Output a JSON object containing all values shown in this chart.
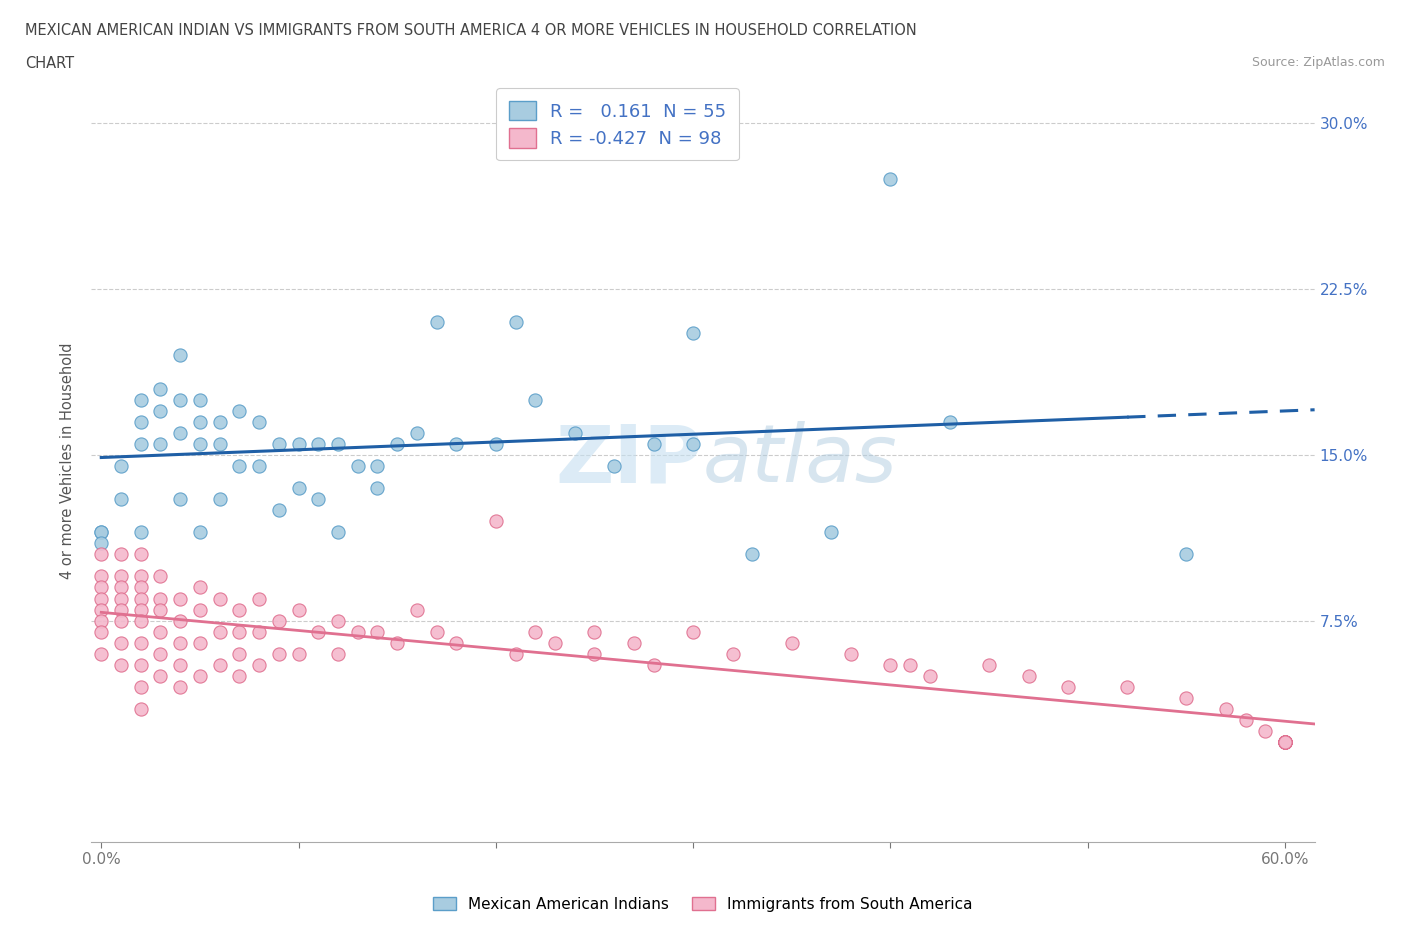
{
  "title_line1": "MEXICAN AMERICAN INDIAN VS IMMIGRANTS FROM SOUTH AMERICA 4 OR MORE VEHICLES IN HOUSEHOLD CORRELATION",
  "title_line2": "CHART",
  "source": "Source: ZipAtlas.com",
  "r_blue": 0.161,
  "n_blue": 55,
  "r_pink": -0.427,
  "n_pink": 98,
  "ylabel": "4 or more Vehicles in Household",
  "xlim": [
    -0.005,
    0.615
  ],
  "ylim": [
    -0.025,
    0.32
  ],
  "x_ticks": [
    0.0,
    0.1,
    0.2,
    0.3,
    0.4,
    0.5,
    0.6
  ],
  "y_ticks": [
    0.0,
    0.075,
    0.15,
    0.225,
    0.3
  ],
  "blue_scatter_color": "#a8cce0",
  "blue_edge_color": "#5b9ec9",
  "pink_scatter_color": "#f4b8cc",
  "pink_edge_color": "#e07090",
  "blue_line_color": "#1f5fa6",
  "pink_line_color": "#e07090",
  "grid_color": "#cccccc",
  "right_tick_color": "#4472c4",
  "background_color": "#ffffff",
  "watermark_color": "#daeaf4",
  "legend_label_blue": "Mexican American Indians",
  "legend_label_pink": "Immigrants from South America",
  "blue_x": [
    0.0,
    0.0,
    0.0,
    0.01,
    0.01,
    0.02,
    0.02,
    0.02,
    0.02,
    0.03,
    0.03,
    0.03,
    0.04,
    0.04,
    0.04,
    0.04,
    0.05,
    0.05,
    0.05,
    0.05,
    0.06,
    0.06,
    0.06,
    0.07,
    0.07,
    0.08,
    0.08,
    0.09,
    0.09,
    0.1,
    0.1,
    0.11,
    0.11,
    0.12,
    0.12,
    0.13,
    0.14,
    0.14,
    0.15,
    0.16,
    0.17,
    0.18,
    0.2,
    0.21,
    0.22,
    0.24,
    0.26,
    0.28,
    0.3,
    0.33,
    0.37,
    0.4,
    0.43,
    0.55,
    0.3
  ],
  "blue_y": [
    0.115,
    0.115,
    0.11,
    0.145,
    0.13,
    0.175,
    0.165,
    0.155,
    0.115,
    0.18,
    0.17,
    0.155,
    0.195,
    0.175,
    0.16,
    0.13,
    0.175,
    0.165,
    0.155,
    0.115,
    0.165,
    0.155,
    0.13,
    0.17,
    0.145,
    0.165,
    0.145,
    0.155,
    0.125,
    0.155,
    0.135,
    0.155,
    0.13,
    0.155,
    0.115,
    0.145,
    0.145,
    0.135,
    0.155,
    0.16,
    0.21,
    0.155,
    0.155,
    0.21,
    0.175,
    0.16,
    0.145,
    0.155,
    0.155,
    0.105,
    0.115,
    0.275,
    0.165,
    0.105,
    0.205
  ],
  "pink_x": [
    0.0,
    0.0,
    0.0,
    0.0,
    0.0,
    0.0,
    0.0,
    0.0,
    0.01,
    0.01,
    0.01,
    0.01,
    0.01,
    0.01,
    0.01,
    0.01,
    0.02,
    0.02,
    0.02,
    0.02,
    0.02,
    0.02,
    0.02,
    0.02,
    0.02,
    0.02,
    0.03,
    0.03,
    0.03,
    0.03,
    0.03,
    0.03,
    0.04,
    0.04,
    0.04,
    0.04,
    0.04,
    0.05,
    0.05,
    0.05,
    0.05,
    0.06,
    0.06,
    0.06,
    0.07,
    0.07,
    0.07,
    0.07,
    0.08,
    0.08,
    0.08,
    0.09,
    0.09,
    0.1,
    0.1,
    0.11,
    0.12,
    0.12,
    0.13,
    0.14,
    0.15,
    0.16,
    0.17,
    0.18,
    0.2,
    0.21,
    0.22,
    0.23,
    0.25,
    0.25,
    0.27,
    0.28,
    0.3,
    0.32,
    0.35,
    0.38,
    0.4,
    0.41,
    0.42,
    0.45,
    0.47,
    0.49,
    0.52,
    0.55,
    0.57,
    0.58,
    0.59,
    0.6,
    0.6,
    0.6,
    0.6,
    0.6,
    0.6,
    0.6,
    0.6,
    0.6,
    0.6,
    0.6
  ],
  "pink_y": [
    0.105,
    0.095,
    0.09,
    0.085,
    0.08,
    0.075,
    0.07,
    0.06,
    0.105,
    0.095,
    0.09,
    0.085,
    0.08,
    0.075,
    0.065,
    0.055,
    0.105,
    0.095,
    0.09,
    0.085,
    0.08,
    0.075,
    0.065,
    0.055,
    0.045,
    0.035,
    0.095,
    0.085,
    0.08,
    0.07,
    0.06,
    0.05,
    0.085,
    0.075,
    0.065,
    0.055,
    0.045,
    0.09,
    0.08,
    0.065,
    0.05,
    0.085,
    0.07,
    0.055,
    0.08,
    0.07,
    0.06,
    0.05,
    0.085,
    0.07,
    0.055,
    0.075,
    0.06,
    0.08,
    0.06,
    0.07,
    0.075,
    0.06,
    0.07,
    0.07,
    0.065,
    0.08,
    0.07,
    0.065,
    0.12,
    0.06,
    0.07,
    0.065,
    0.07,
    0.06,
    0.065,
    0.055,
    0.07,
    0.06,
    0.065,
    0.06,
    0.055,
    0.055,
    0.05,
    0.055,
    0.05,
    0.045,
    0.045,
    0.04,
    0.035,
    0.03,
    0.025,
    0.02,
    0.02,
    0.02,
    0.02,
    0.02,
    0.02,
    0.02,
    0.02,
    0.02,
    0.02,
    0.02
  ]
}
